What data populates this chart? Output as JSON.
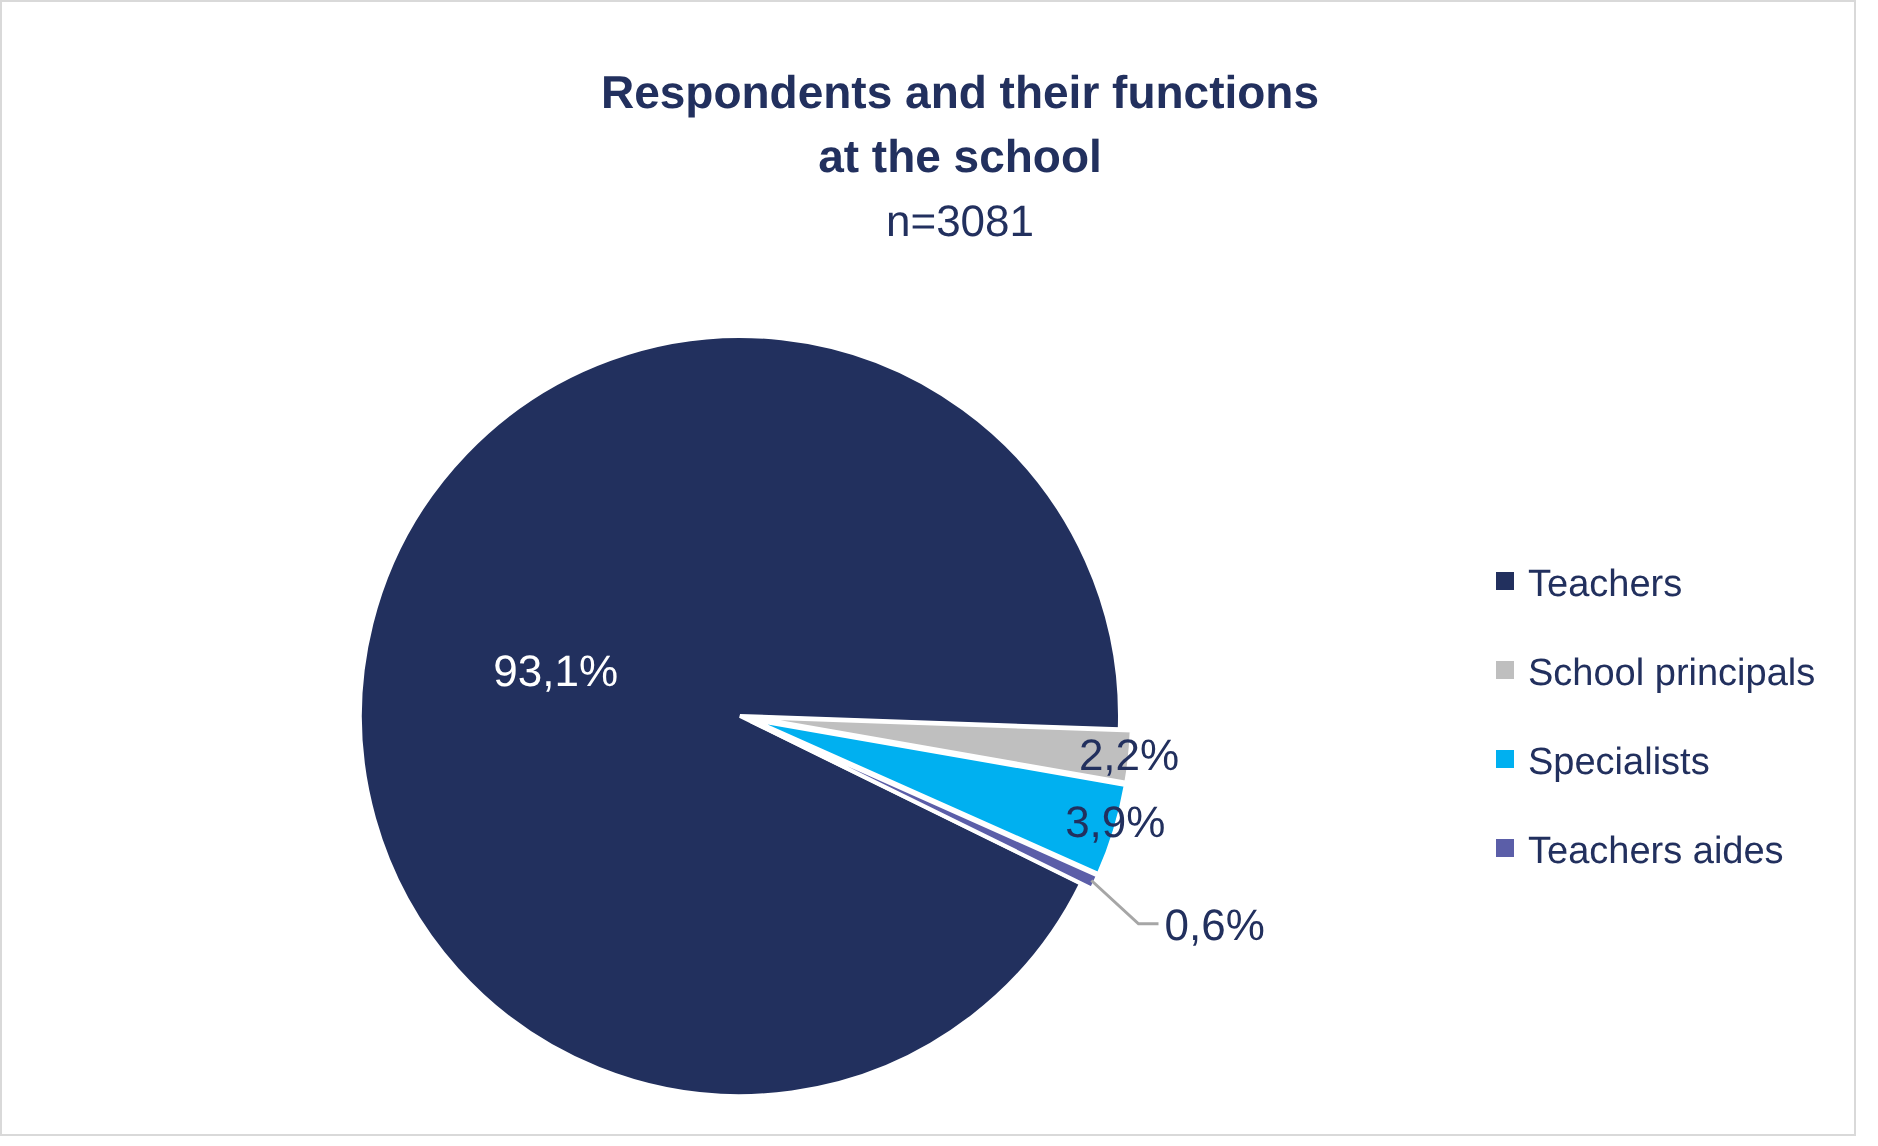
{
  "chart_data": {
    "type": "pie",
    "title": "Respondents and their functions\nat the school",
    "subtitle": "n=3081",
    "categories": [
      "Teachers",
      "School principals",
      "Specialists",
      "Teachers aides"
    ],
    "values": [
      93.1,
      2.2,
      3.9,
      0.6
    ],
    "colors": [
      "#22305e",
      "#bfbfbf",
      "#00b0f0",
      "#5b5ea8"
    ],
    "value_labels": [
      "93,1%",
      "2,2%",
      "3,9%",
      "0,6%"
    ],
    "legend": "right"
  }
}
